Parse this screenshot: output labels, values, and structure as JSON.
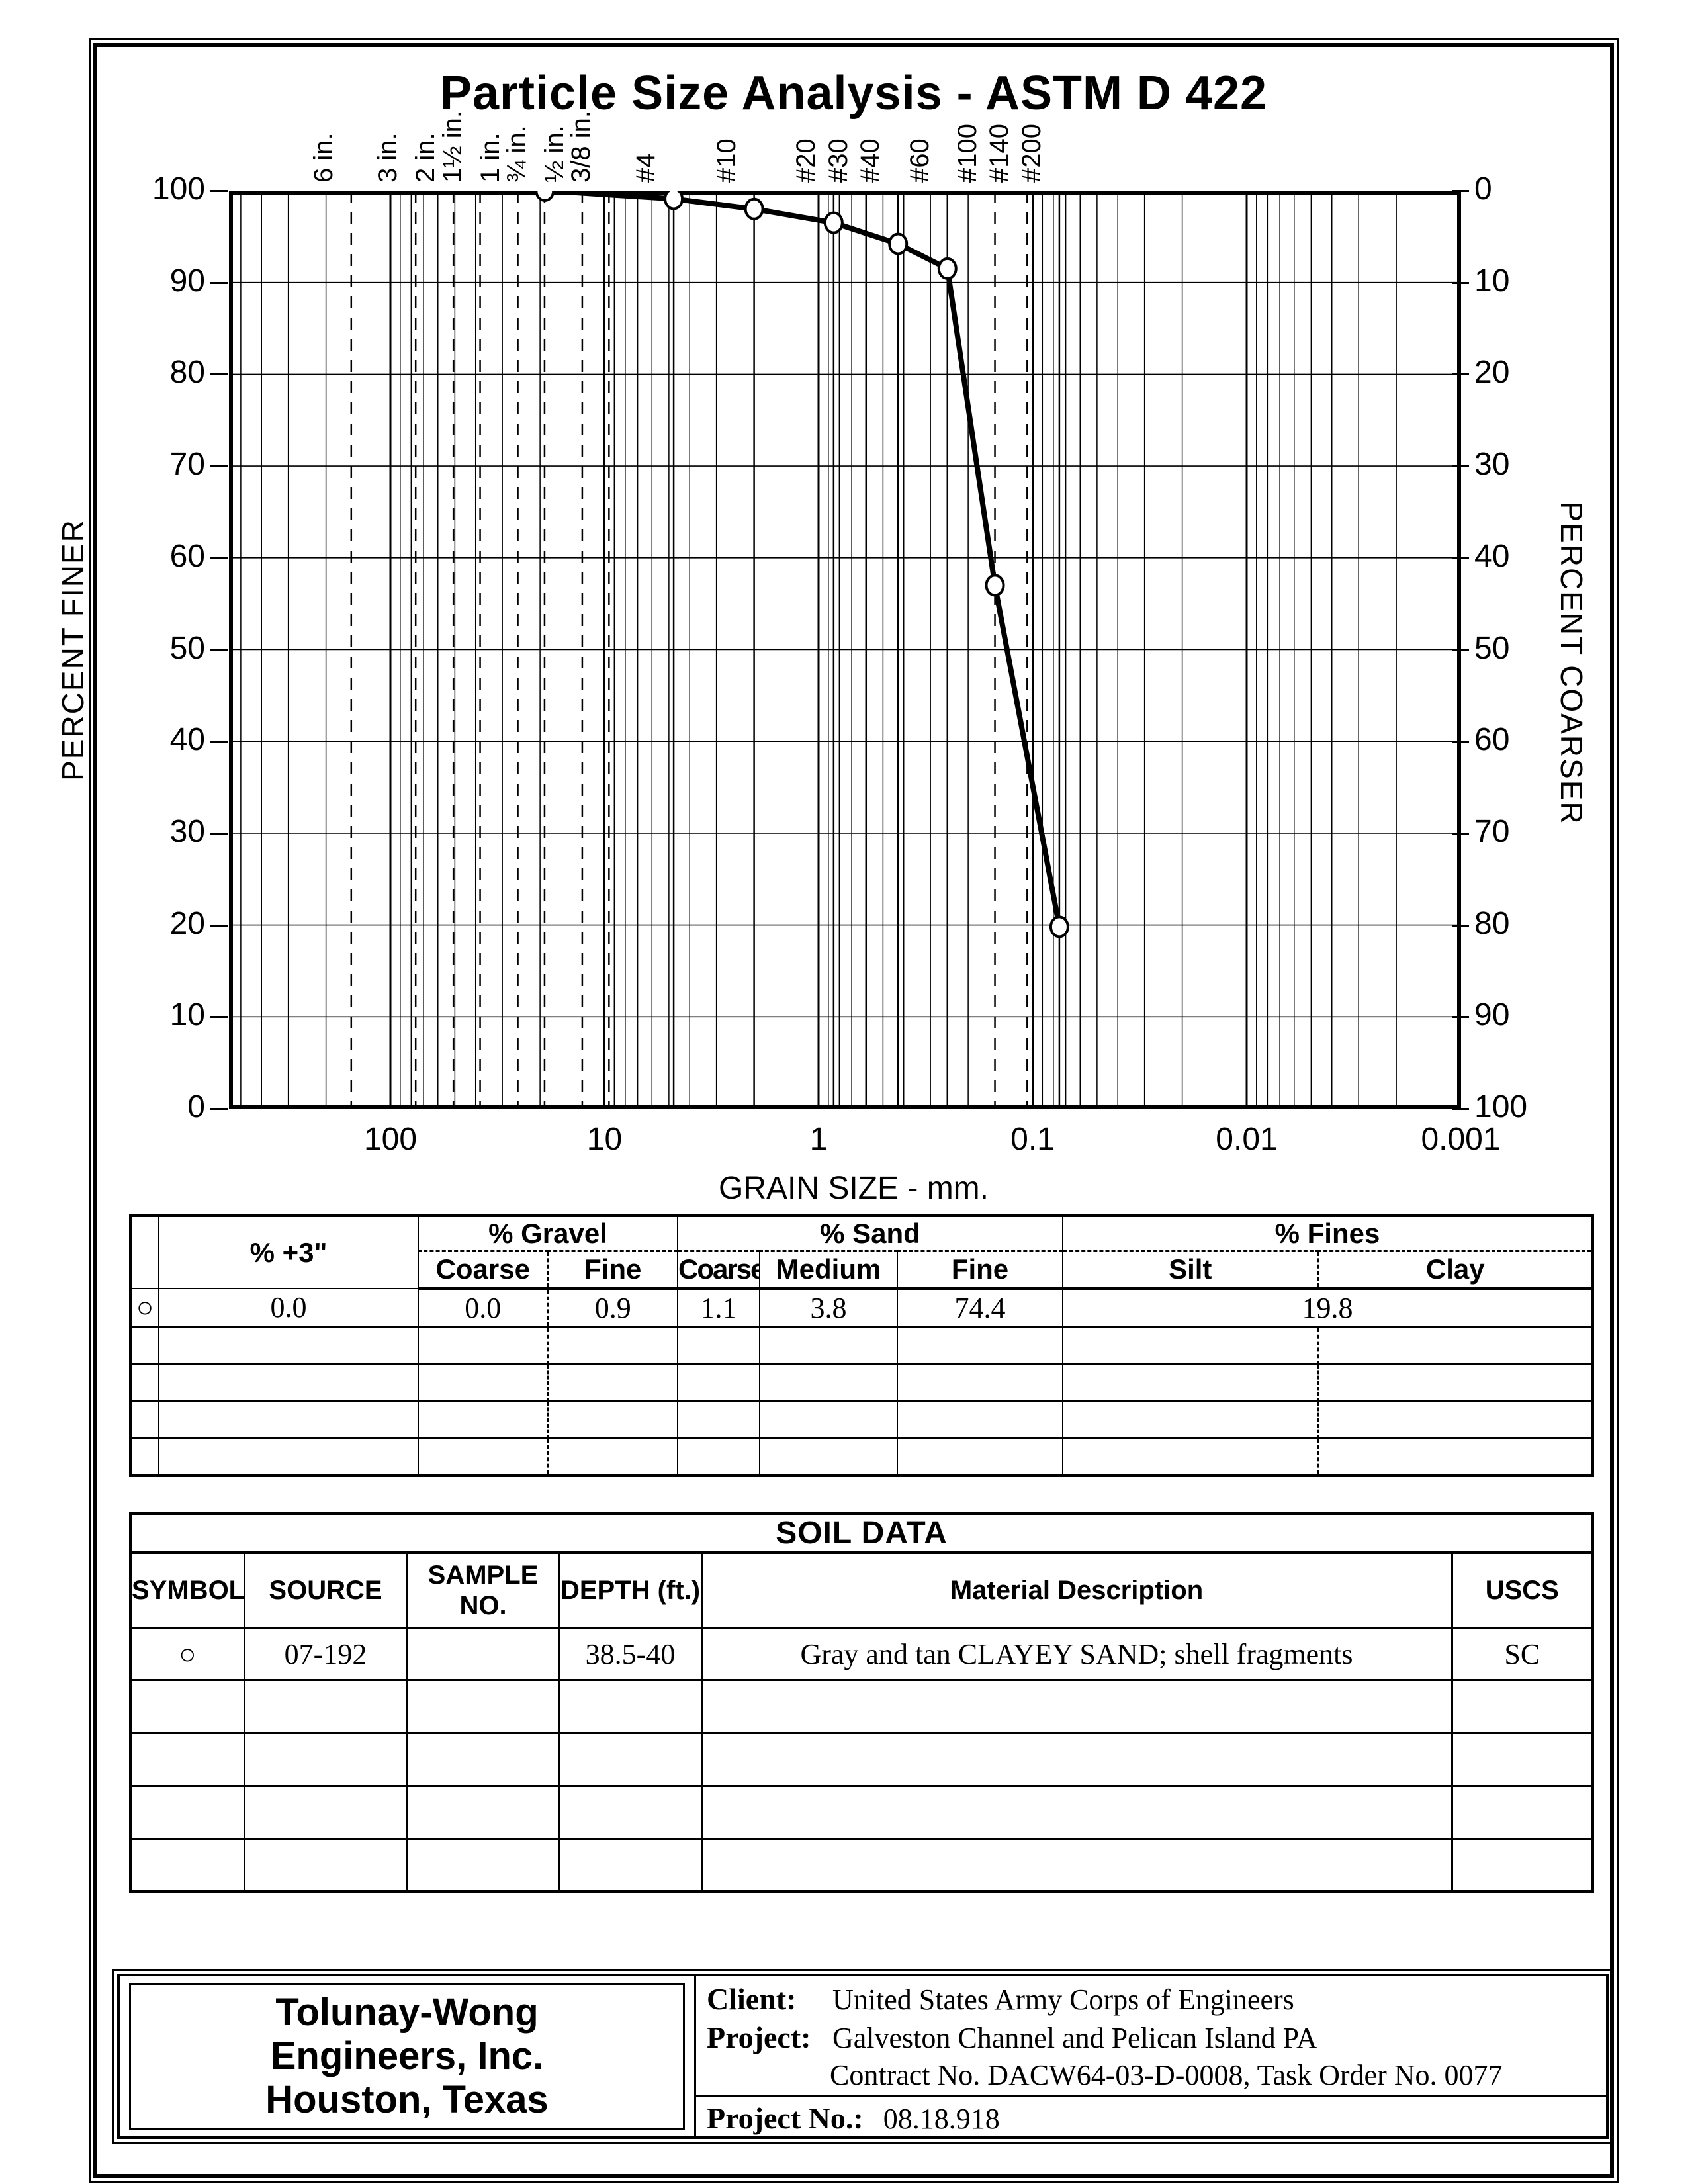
{
  "page": {
    "title": "Particle Size Analysis - ASTM D 422"
  },
  "chart_data": {
    "type": "line",
    "title": "Particle Size Analysis - ASTM D 422",
    "xlabel": "GRAIN SIZE - mm.",
    "ylabel_left": "PERCENT FINER",
    "ylabel_right": "PERCENT COARSER",
    "x_scale": "log",
    "x_domain_mm": [
      567,
      0.001
    ],
    "grid": true,
    "x_ticks": [
      {
        "label": "100",
        "mm": 100
      },
      {
        "label": "10",
        "mm": 10
      },
      {
        "label": "1",
        "mm": 1
      },
      {
        "label": "0.1",
        "mm": 0.1
      },
      {
        "label": "0.01",
        "mm": 0.01
      },
      {
        "label": "0.001",
        "mm": 0.001
      }
    ],
    "y_left_ticks": [
      100,
      90,
      80,
      70,
      60,
      50,
      40,
      30,
      20,
      10,
      0
    ],
    "y_right_ticks": [
      0,
      10,
      20,
      30,
      40,
      50,
      60,
      70,
      80,
      90,
      100
    ],
    "sieve_lines": [
      {
        "label": "6 in.",
        "mm": 152.4,
        "dashed": true
      },
      {
        "label": "3 in.",
        "mm": 76.2,
        "dashed": true
      },
      {
        "label": "2 in.",
        "mm": 50.8,
        "dashed": true
      },
      {
        "label": "1½ in.",
        "mm": 38.1,
        "dashed": true
      },
      {
        "label": "1 in.",
        "mm": 25.4,
        "dashed": true
      },
      {
        "label": "¾ in.",
        "mm": 19.05,
        "dashed": true
      },
      {
        "label": "½ in.",
        "mm": 12.7,
        "dashed": true
      },
      {
        "label": "3/8 in.",
        "mm": 9.525,
        "dashed": true
      },
      {
        "label": "#4",
        "mm": 4.75,
        "dashed": false
      },
      {
        "label": "#10",
        "mm": 2.0,
        "dashed": false
      },
      {
        "label": "#20",
        "mm": 0.85,
        "dashed": false
      },
      {
        "label": "#30",
        "mm": 0.6,
        "dashed": false
      },
      {
        "label": "#40",
        "mm": 0.425,
        "dashed": false
      },
      {
        "label": "#60",
        "mm": 0.25,
        "dashed": false
      },
      {
        "label": "#100",
        "mm": 0.15,
        "dashed": true
      },
      {
        "label": "#140",
        "mm": 0.106,
        "dashed": true
      },
      {
        "label": "#200",
        "mm": 0.075,
        "dashed": false
      }
    ],
    "series": [
      {
        "name": "07-192",
        "symbol": "circle",
        "points": [
          [
            19,
            100
          ],
          [
            4.75,
            99.1
          ],
          [
            2.0,
            98.0
          ],
          [
            0.85,
            96.5
          ],
          [
            0.425,
            94.2
          ],
          [
            0.25,
            91.5
          ],
          [
            0.15,
            57.0
          ],
          [
            0.075,
            19.8
          ]
        ]
      }
    ]
  },
  "gradation_table": {
    "group_headers": {
      "plus3": "% +3\"",
      "gravel": "% Gravel",
      "sand": "% Sand",
      "fines": "% Fines"
    },
    "sub_headers": [
      "Coarse",
      "Fine",
      "Coarse",
      "Medium",
      "Fine",
      "Silt",
      "Clay"
    ],
    "data_row": {
      "symbol": "○",
      "plus3": "0.0",
      "gravel_coarse": "0.0",
      "gravel_fine": "0.9",
      "sand_coarse": "1.1",
      "sand_medium": "3.8",
      "sand_fine": "74.4",
      "fines": "19.8"
    }
  },
  "soil_table": {
    "title": "SOIL DATA",
    "headers": [
      "SYMBOL",
      "SOURCE",
      "SAMPLE NO.",
      "DEPTH (ft.)",
      "Material Description",
      "USCS"
    ],
    "data_row": {
      "symbol": "○",
      "source": "07-192",
      "sample_no": "",
      "depth_ft": "38.5-40",
      "material_description": "Gray and tan CLAYEY SAND; shell fragments",
      "uscs": "SC"
    }
  },
  "footer": {
    "company": {
      "line1": "Tolunay-Wong",
      "line2": "Engineers, Inc.",
      "line3": "Houston, Texas"
    },
    "client_label": "Client:",
    "client": "United States Army Corps of Engineers",
    "project_label": "Project:",
    "project_line1": "Galveston Channel and Pelican Island PA",
    "project_line2": "Contract No. DACW64-03-D-0008, Task Order No. 0077",
    "project_no_label": "Project No.:",
    "project_no": "08.18.918"
  }
}
